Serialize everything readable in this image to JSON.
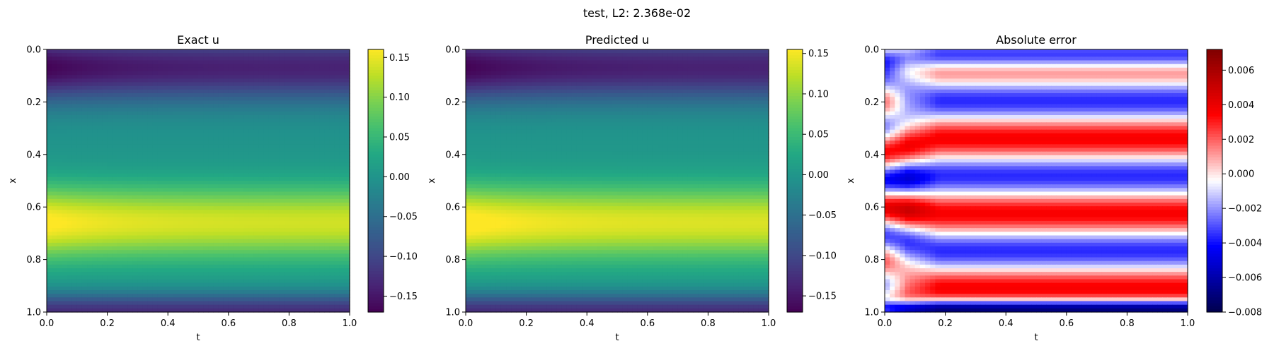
{
  "figure": {
    "suptitle": "test, L2: 2.368e-02"
  },
  "chart_data": [
    {
      "type": "heatmap",
      "title": "Exact u",
      "xlabel": "t",
      "ylabel": "x",
      "xlim": [
        0,
        1
      ],
      "ylim": [
        1,
        0
      ],
      "xticks": [
        "0.0",
        "0.2",
        "0.4",
        "0.6",
        "0.8",
        "1.0"
      ],
      "yticks": [
        "0.0",
        "0.2",
        "0.4",
        "0.6",
        "0.8",
        "1.0"
      ],
      "colormap": "viridis",
      "vmin": -0.17,
      "vmax": 0.16,
      "colorbar_ticks": [
        "0.15",
        "0.10",
        "0.05",
        "0.00",
        "−0.05",
        "−0.10",
        "−0.15"
      ],
      "colorbar_tick_values": [
        0.15,
        0.1,
        0.05,
        0.0,
        -0.05,
        -0.1,
        -0.15
      ]
    },
    {
      "type": "heatmap",
      "title": "Predicted u",
      "xlabel": "t",
      "ylabel": "x",
      "xlim": [
        0,
        1
      ],
      "ylim": [
        1,
        0
      ],
      "xticks": [
        "0.0",
        "0.2",
        "0.4",
        "0.6",
        "0.8",
        "1.0"
      ],
      "yticks": [
        "0.0",
        "0.2",
        "0.4",
        "0.6",
        "0.8",
        "1.0"
      ],
      "colormap": "viridis",
      "vmin": -0.17,
      "vmax": 0.155,
      "colorbar_ticks": [
        "0.15",
        "0.10",
        "0.05",
        "0.00",
        "−0.05",
        "−0.10",
        "−0.15"
      ],
      "colorbar_tick_values": [
        0.15,
        0.1,
        0.05,
        0.0,
        -0.05,
        -0.1,
        -0.15
      ]
    },
    {
      "type": "heatmap",
      "title": "Absolute error",
      "xlabel": "t",
      "ylabel": "x",
      "xlim": [
        0,
        1
      ],
      "ylim": [
        1,
        0
      ],
      "xticks": [
        "0.0",
        "0.2",
        "0.4",
        "0.6",
        "0.8",
        "1.0"
      ],
      "yticks": [
        "0.0",
        "0.2",
        "0.4",
        "0.6",
        "0.8",
        "1.0"
      ],
      "colormap": "seismic",
      "vmin": -0.008,
      "vmax": 0.0072,
      "colorbar_ticks": [
        "0.006",
        "0.004",
        "0.002",
        "0.000",
        "−0.002",
        "−0.004",
        "−0.006",
        "−0.008"
      ],
      "colorbar_tick_values": [
        0.006,
        0.004,
        0.002,
        0.0,
        -0.002,
        -0.004,
        -0.006,
        -0.008
      ]
    }
  ]
}
